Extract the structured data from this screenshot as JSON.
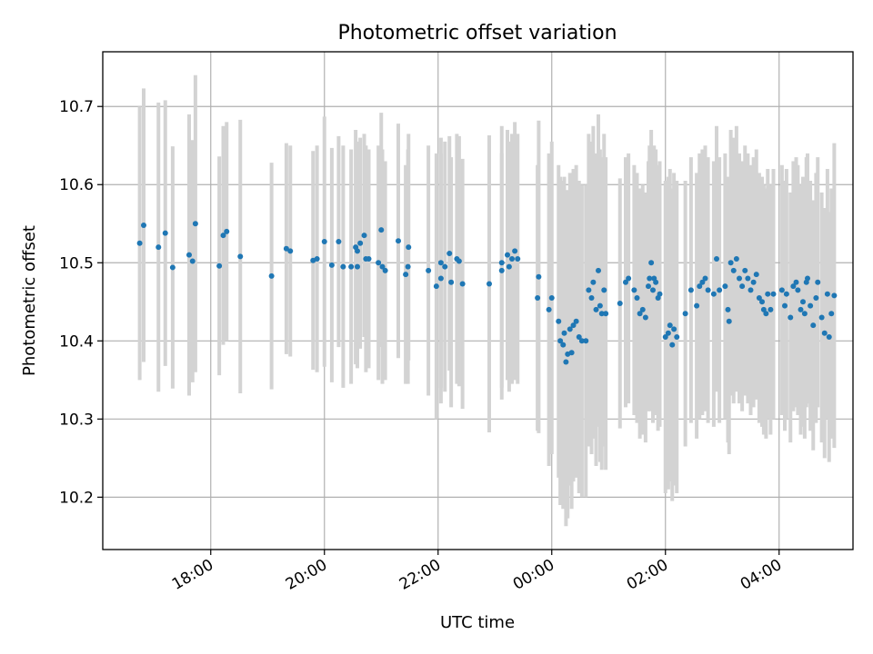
{
  "chart_data": {
    "type": "scatter",
    "title": "Photometric offset variation",
    "xlabel": "UTC time",
    "ylabel": "Photometric offset",
    "x_unit": "hours (UTC, continuing past midnight)",
    "xlim": [
      16.1,
      29.3
    ],
    "ylim": [
      10.133,
      10.77
    ],
    "x_ticks": [
      {
        "value": 18,
        "label": "18:00"
      },
      {
        "value": 20,
        "label": "20:00"
      },
      {
        "value": 22,
        "label": "22:00"
      },
      {
        "value": 24,
        "label": "00:00"
      },
      {
        "value": 26,
        "label": "02:00"
      },
      {
        "value": 28,
        "label": "04:00"
      }
    ],
    "y_ticks": [
      {
        "value": 10.2,
        "label": "10.2"
      },
      {
        "value": 10.3,
        "label": "10.3"
      },
      {
        "value": 10.4,
        "label": "10.4"
      },
      {
        "value": 10.5,
        "label": "10.5"
      },
      {
        "value": 10.6,
        "label": "10.6"
      },
      {
        "value": 10.7,
        "label": "10.7"
      }
    ],
    "grid": true,
    "colors": {
      "points": "#1f77b4",
      "errorbars": "#d3d3d3"
    },
    "points": [
      {
        "x": 16.75,
        "y": 10.525,
        "err": 0.175
      },
      {
        "x": 16.82,
        "y": 10.548,
        "err": 0.175
      },
      {
        "x": 17.08,
        "y": 10.52,
        "err": 0.185
      },
      {
        "x": 17.2,
        "y": 10.538,
        "err": 0.17
      },
      {
        "x": 17.33,
        "y": 10.494,
        "err": 0.155
      },
      {
        "x": 17.62,
        "y": 10.51,
        "err": 0.18
      },
      {
        "x": 17.68,
        "y": 10.502,
        "err": 0.155
      },
      {
        "x": 17.73,
        "y": 10.55,
        "err": 0.19
      },
      {
        "x": 18.15,
        "y": 10.496,
        "err": 0.14
      },
      {
        "x": 18.22,
        "y": 10.535,
        "err": 0.14
      },
      {
        "x": 18.28,
        "y": 10.54,
        "err": 0.14
      },
      {
        "x": 18.52,
        "y": 10.508,
        "err": 0.175
      },
      {
        "x": 19.07,
        "y": 10.483,
        "err": 0.145
      },
      {
        "x": 19.33,
        "y": 10.518,
        "err": 0.135
      },
      {
        "x": 19.4,
        "y": 10.515,
        "err": 0.135
      },
      {
        "x": 19.8,
        "y": 10.503,
        "err": 0.14
      },
      {
        "x": 19.87,
        "y": 10.505,
        "err": 0.145
      },
      {
        "x": 20.0,
        "y": 10.527,
        "err": 0.16
      },
      {
        "x": 20.13,
        "y": 10.497,
        "err": 0.15
      },
      {
        "x": 20.25,
        "y": 10.527,
        "err": 0.135
      },
      {
        "x": 20.33,
        "y": 10.495,
        "err": 0.155
      },
      {
        "x": 20.47,
        "y": 10.495,
        "err": 0.15
      },
      {
        "x": 20.55,
        "y": 10.52,
        "err": 0.15
      },
      {
        "x": 20.58,
        "y": 10.515,
        "err": 0.14
      },
      {
        "x": 20.63,
        "y": 10.525,
        "err": 0.135
      },
      {
        "x": 20.58,
        "y": 10.495,
        "err": 0.13
      },
      {
        "x": 20.7,
        "y": 10.535,
        "err": 0.13
      },
      {
        "x": 20.73,
        "y": 10.505,
        "err": 0.145
      },
      {
        "x": 20.78,
        "y": 10.505,
        "err": 0.14
      },
      {
        "x": 20.95,
        "y": 10.5,
        "err": 0.15
      },
      {
        "x": 21.02,
        "y": 10.495,
        "err": 0.15
      },
      {
        "x": 21.07,
        "y": 10.49,
        "err": 0.14
      },
      {
        "x": 21.0,
        "y": 10.542,
        "err": 0.15
      },
      {
        "x": 21.3,
        "y": 10.528,
        "err": 0.15
      },
      {
        "x": 21.43,
        "y": 10.485,
        "err": 0.14
      },
      {
        "x": 21.47,
        "y": 10.495,
        "err": 0.15
      },
      {
        "x": 21.48,
        "y": 10.52,
        "err": 0.145
      },
      {
        "x": 21.83,
        "y": 10.49,
        "err": 0.16
      },
      {
        "x": 21.97,
        "y": 10.47,
        "err": 0.17
      },
      {
        "x": 22.05,
        "y": 10.48,
        "err": 0.16
      },
      {
        "x": 22.05,
        "y": 10.5,
        "err": 0.16
      },
      {
        "x": 22.12,
        "y": 10.495,
        "err": 0.16
      },
      {
        "x": 22.2,
        "y": 10.512,
        "err": 0.15
      },
      {
        "x": 22.23,
        "y": 10.475,
        "err": 0.16
      },
      {
        "x": 22.33,
        "y": 10.505,
        "err": 0.16
      },
      {
        "x": 22.37,
        "y": 10.502,
        "err": 0.16
      },
      {
        "x": 22.43,
        "y": 10.473,
        "err": 0.16
      },
      {
        "x": 22.9,
        "y": 10.473,
        "err": 0.19
      },
      {
        "x": 23.12,
        "y": 10.5,
        "err": 0.175
      },
      {
        "x": 23.12,
        "y": 10.49,
        "err": 0.15
      },
      {
        "x": 23.22,
        "y": 10.51,
        "err": 0.16
      },
      {
        "x": 23.25,
        "y": 10.495,
        "err": 0.16
      },
      {
        "x": 23.3,
        "y": 10.505,
        "err": 0.16
      },
      {
        "x": 23.35,
        "y": 10.515,
        "err": 0.165
      },
      {
        "x": 23.4,
        "y": 10.505,
        "err": 0.16
      },
      {
        "x": 23.75,
        "y": 10.455,
        "err": 0.17
      },
      {
        "x": 23.77,
        "y": 10.482,
        "err": 0.2
      },
      {
        "x": 23.95,
        "y": 10.44,
        "err": 0.2
      },
      {
        "x": 24.0,
        "y": 10.455,
        "err": 0.2
      },
      {
        "x": 24.12,
        "y": 10.425,
        "err": 0.2
      },
      {
        "x": 24.15,
        "y": 10.4,
        "err": 0.21
      },
      {
        "x": 24.2,
        "y": 10.395,
        "err": 0.21
      },
      {
        "x": 24.22,
        "y": 10.41,
        "err": 0.2
      },
      {
        "x": 24.25,
        "y": 10.373,
        "err": 0.21
      },
      {
        "x": 24.28,
        "y": 10.383,
        "err": 0.21
      },
      {
        "x": 24.32,
        "y": 10.415,
        "err": 0.2
      },
      {
        "x": 24.35,
        "y": 10.385,
        "err": 0.2
      },
      {
        "x": 24.38,
        "y": 10.42,
        "err": 0.2
      },
      {
        "x": 24.43,
        "y": 10.425,
        "err": 0.2
      },
      {
        "x": 24.48,
        "y": 10.405,
        "err": 0.2
      },
      {
        "x": 24.53,
        "y": 10.4,
        "err": 0.2
      },
      {
        "x": 24.6,
        "y": 10.4,
        "err": 0.2
      },
      {
        "x": 24.65,
        "y": 10.465,
        "err": 0.2
      },
      {
        "x": 24.7,
        "y": 10.455,
        "err": 0.2
      },
      {
        "x": 24.73,
        "y": 10.475,
        "err": 0.2
      },
      {
        "x": 24.78,
        "y": 10.44,
        "err": 0.2
      },
      {
        "x": 24.82,
        "y": 10.49,
        "err": 0.2
      },
      {
        "x": 24.85,
        "y": 10.445,
        "err": 0.2
      },
      {
        "x": 24.88,
        "y": 10.435,
        "err": 0.2
      },
      {
        "x": 24.92,
        "y": 10.465,
        "err": 0.2
      },
      {
        "x": 24.95,
        "y": 10.435,
        "err": 0.2
      },
      {
        "x": 25.2,
        "y": 10.448,
        "err": 0.16
      },
      {
        "x": 25.3,
        "y": 10.475,
        "err": 0.16
      },
      {
        "x": 25.35,
        "y": 10.48,
        "err": 0.16
      },
      {
        "x": 25.45,
        "y": 10.465,
        "err": 0.16
      },
      {
        "x": 25.5,
        "y": 10.455,
        "err": 0.16
      },
      {
        "x": 25.55,
        "y": 10.435,
        "err": 0.16
      },
      {
        "x": 25.6,
        "y": 10.44,
        "err": 0.16
      },
      {
        "x": 25.65,
        "y": 10.43,
        "err": 0.16
      },
      {
        "x": 25.7,
        "y": 10.47,
        "err": 0.16
      },
      {
        "x": 25.72,
        "y": 10.48,
        "err": 0.17
      },
      {
        "x": 25.75,
        "y": 10.5,
        "err": 0.17
      },
      {
        "x": 25.78,
        "y": 10.465,
        "err": 0.17
      },
      {
        "x": 25.8,
        "y": 10.48,
        "err": 0.17
      },
      {
        "x": 25.83,
        "y": 10.475,
        "err": 0.17
      },
      {
        "x": 25.87,
        "y": 10.455,
        "err": 0.17
      },
      {
        "x": 25.9,
        "y": 10.46,
        "err": 0.17
      },
      {
        "x": 26.0,
        "y": 10.405,
        "err": 0.2
      },
      {
        "x": 26.05,
        "y": 10.41,
        "err": 0.2
      },
      {
        "x": 26.08,
        "y": 10.42,
        "err": 0.2
      },
      {
        "x": 26.12,
        "y": 10.395,
        "err": 0.2
      },
      {
        "x": 26.15,
        "y": 10.415,
        "err": 0.2
      },
      {
        "x": 26.2,
        "y": 10.405,
        "err": 0.2
      },
      {
        "x": 26.35,
        "y": 10.435,
        "err": 0.17
      },
      {
        "x": 26.45,
        "y": 10.465,
        "err": 0.17
      },
      {
        "x": 26.55,
        "y": 10.445,
        "err": 0.17
      },
      {
        "x": 26.6,
        "y": 10.47,
        "err": 0.17
      },
      {
        "x": 26.65,
        "y": 10.475,
        "err": 0.17
      },
      {
        "x": 26.7,
        "y": 10.48,
        "err": 0.17
      },
      {
        "x": 26.75,
        "y": 10.465,
        "err": 0.17
      },
      {
        "x": 26.85,
        "y": 10.46,
        "err": 0.17
      },
      {
        "x": 26.9,
        "y": 10.505,
        "err": 0.17
      },
      {
        "x": 26.95,
        "y": 10.465,
        "err": 0.17
      },
      {
        "x": 27.05,
        "y": 10.47,
        "err": 0.17
      },
      {
        "x": 27.1,
        "y": 10.44,
        "err": 0.17
      },
      {
        "x": 27.12,
        "y": 10.425,
        "err": 0.17
      },
      {
        "x": 27.15,
        "y": 10.5,
        "err": 0.17
      },
      {
        "x": 27.2,
        "y": 10.49,
        "err": 0.17
      },
      {
        "x": 27.25,
        "y": 10.505,
        "err": 0.17
      },
      {
        "x": 27.3,
        "y": 10.48,
        "err": 0.16
      },
      {
        "x": 27.35,
        "y": 10.47,
        "err": 0.16
      },
      {
        "x": 27.4,
        "y": 10.49,
        "err": 0.16
      },
      {
        "x": 27.45,
        "y": 10.48,
        "err": 0.16
      },
      {
        "x": 27.5,
        "y": 10.465,
        "err": 0.16
      },
      {
        "x": 27.55,
        "y": 10.475,
        "err": 0.16
      },
      {
        "x": 27.6,
        "y": 10.485,
        "err": 0.16
      },
      {
        "x": 27.65,
        "y": 10.455,
        "err": 0.16
      },
      {
        "x": 27.7,
        "y": 10.45,
        "err": 0.16
      },
      {
        "x": 27.73,
        "y": 10.44,
        "err": 0.16
      },
      {
        "x": 27.77,
        "y": 10.435,
        "err": 0.16
      },
      {
        "x": 27.8,
        "y": 10.46,
        "err": 0.16
      },
      {
        "x": 27.85,
        "y": 10.44,
        "err": 0.16
      },
      {
        "x": 27.9,
        "y": 10.46,
        "err": 0.16
      },
      {
        "x": 28.05,
        "y": 10.465,
        "err": 0.16
      },
      {
        "x": 28.1,
        "y": 10.445,
        "err": 0.16
      },
      {
        "x": 28.13,
        "y": 10.46,
        "err": 0.16
      },
      {
        "x": 28.2,
        "y": 10.43,
        "err": 0.16
      },
      {
        "x": 28.25,
        "y": 10.47,
        "err": 0.16
      },
      {
        "x": 28.3,
        "y": 10.475,
        "err": 0.16
      },
      {
        "x": 28.33,
        "y": 10.465,
        "err": 0.16
      },
      {
        "x": 28.38,
        "y": 10.44,
        "err": 0.16
      },
      {
        "x": 28.42,
        "y": 10.45,
        "err": 0.16
      },
      {
        "x": 28.45,
        "y": 10.435,
        "err": 0.16
      },
      {
        "x": 28.48,
        "y": 10.475,
        "err": 0.16
      },
      {
        "x": 28.5,
        "y": 10.48,
        "err": 0.16
      },
      {
        "x": 28.55,
        "y": 10.445,
        "err": 0.16
      },
      {
        "x": 28.6,
        "y": 10.42,
        "err": 0.16
      },
      {
        "x": 28.65,
        "y": 10.455,
        "err": 0.16
      },
      {
        "x": 28.68,
        "y": 10.475,
        "err": 0.16
      },
      {
        "x": 28.75,
        "y": 10.43,
        "err": 0.16
      },
      {
        "x": 28.8,
        "y": 10.41,
        "err": 0.16
      },
      {
        "x": 28.85,
        "y": 10.46,
        "err": 0.16
      },
      {
        "x": 28.88,
        "y": 10.405,
        "err": 0.16
      },
      {
        "x": 28.92,
        "y": 10.435,
        "err": 0.16
      },
      {
        "x": 28.97,
        "y": 10.458,
        "err": 0.195
      }
    ]
  }
}
